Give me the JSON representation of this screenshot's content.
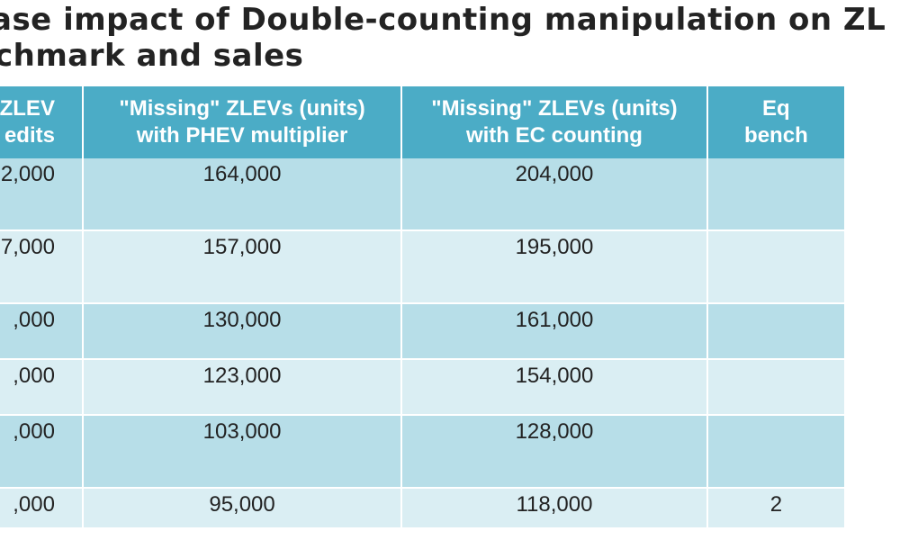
{
  "title": {
    "line1": "ase impact of Double-counting manipulation on ZL",
    "line2": "chmark and sales"
  },
  "table": {
    "headers": [
      {
        "line1": "a ZLEV",
        "line2": "edits"
      },
      {
        "line1": "\"Missing\" ZLEVs (units)",
        "line2": "with PHEV multiplier"
      },
      {
        "line1": "\"Missing\" ZLEVs (units)",
        "line2": "with EC counting"
      },
      {
        "line1": "Eq",
        "line2": "bench"
      }
    ],
    "rows": [
      [
        "2,000",
        "164,000",
        "204,000",
        ""
      ],
      [
        "7,000",
        "157,000",
        "195,000",
        ""
      ],
      [
        ",000",
        "130,000",
        "161,000",
        ""
      ],
      [
        ",000",
        "123,000",
        "154,000",
        ""
      ],
      [
        ",000",
        "103,000",
        "128,000",
        ""
      ],
      [
        ",000",
        "95,000",
        "118,000",
        "2"
      ]
    ]
  },
  "colors": {
    "header_bg": "#4BACC6",
    "row_dark": "#B7DEE8",
    "row_light": "#DAEEF3"
  }
}
